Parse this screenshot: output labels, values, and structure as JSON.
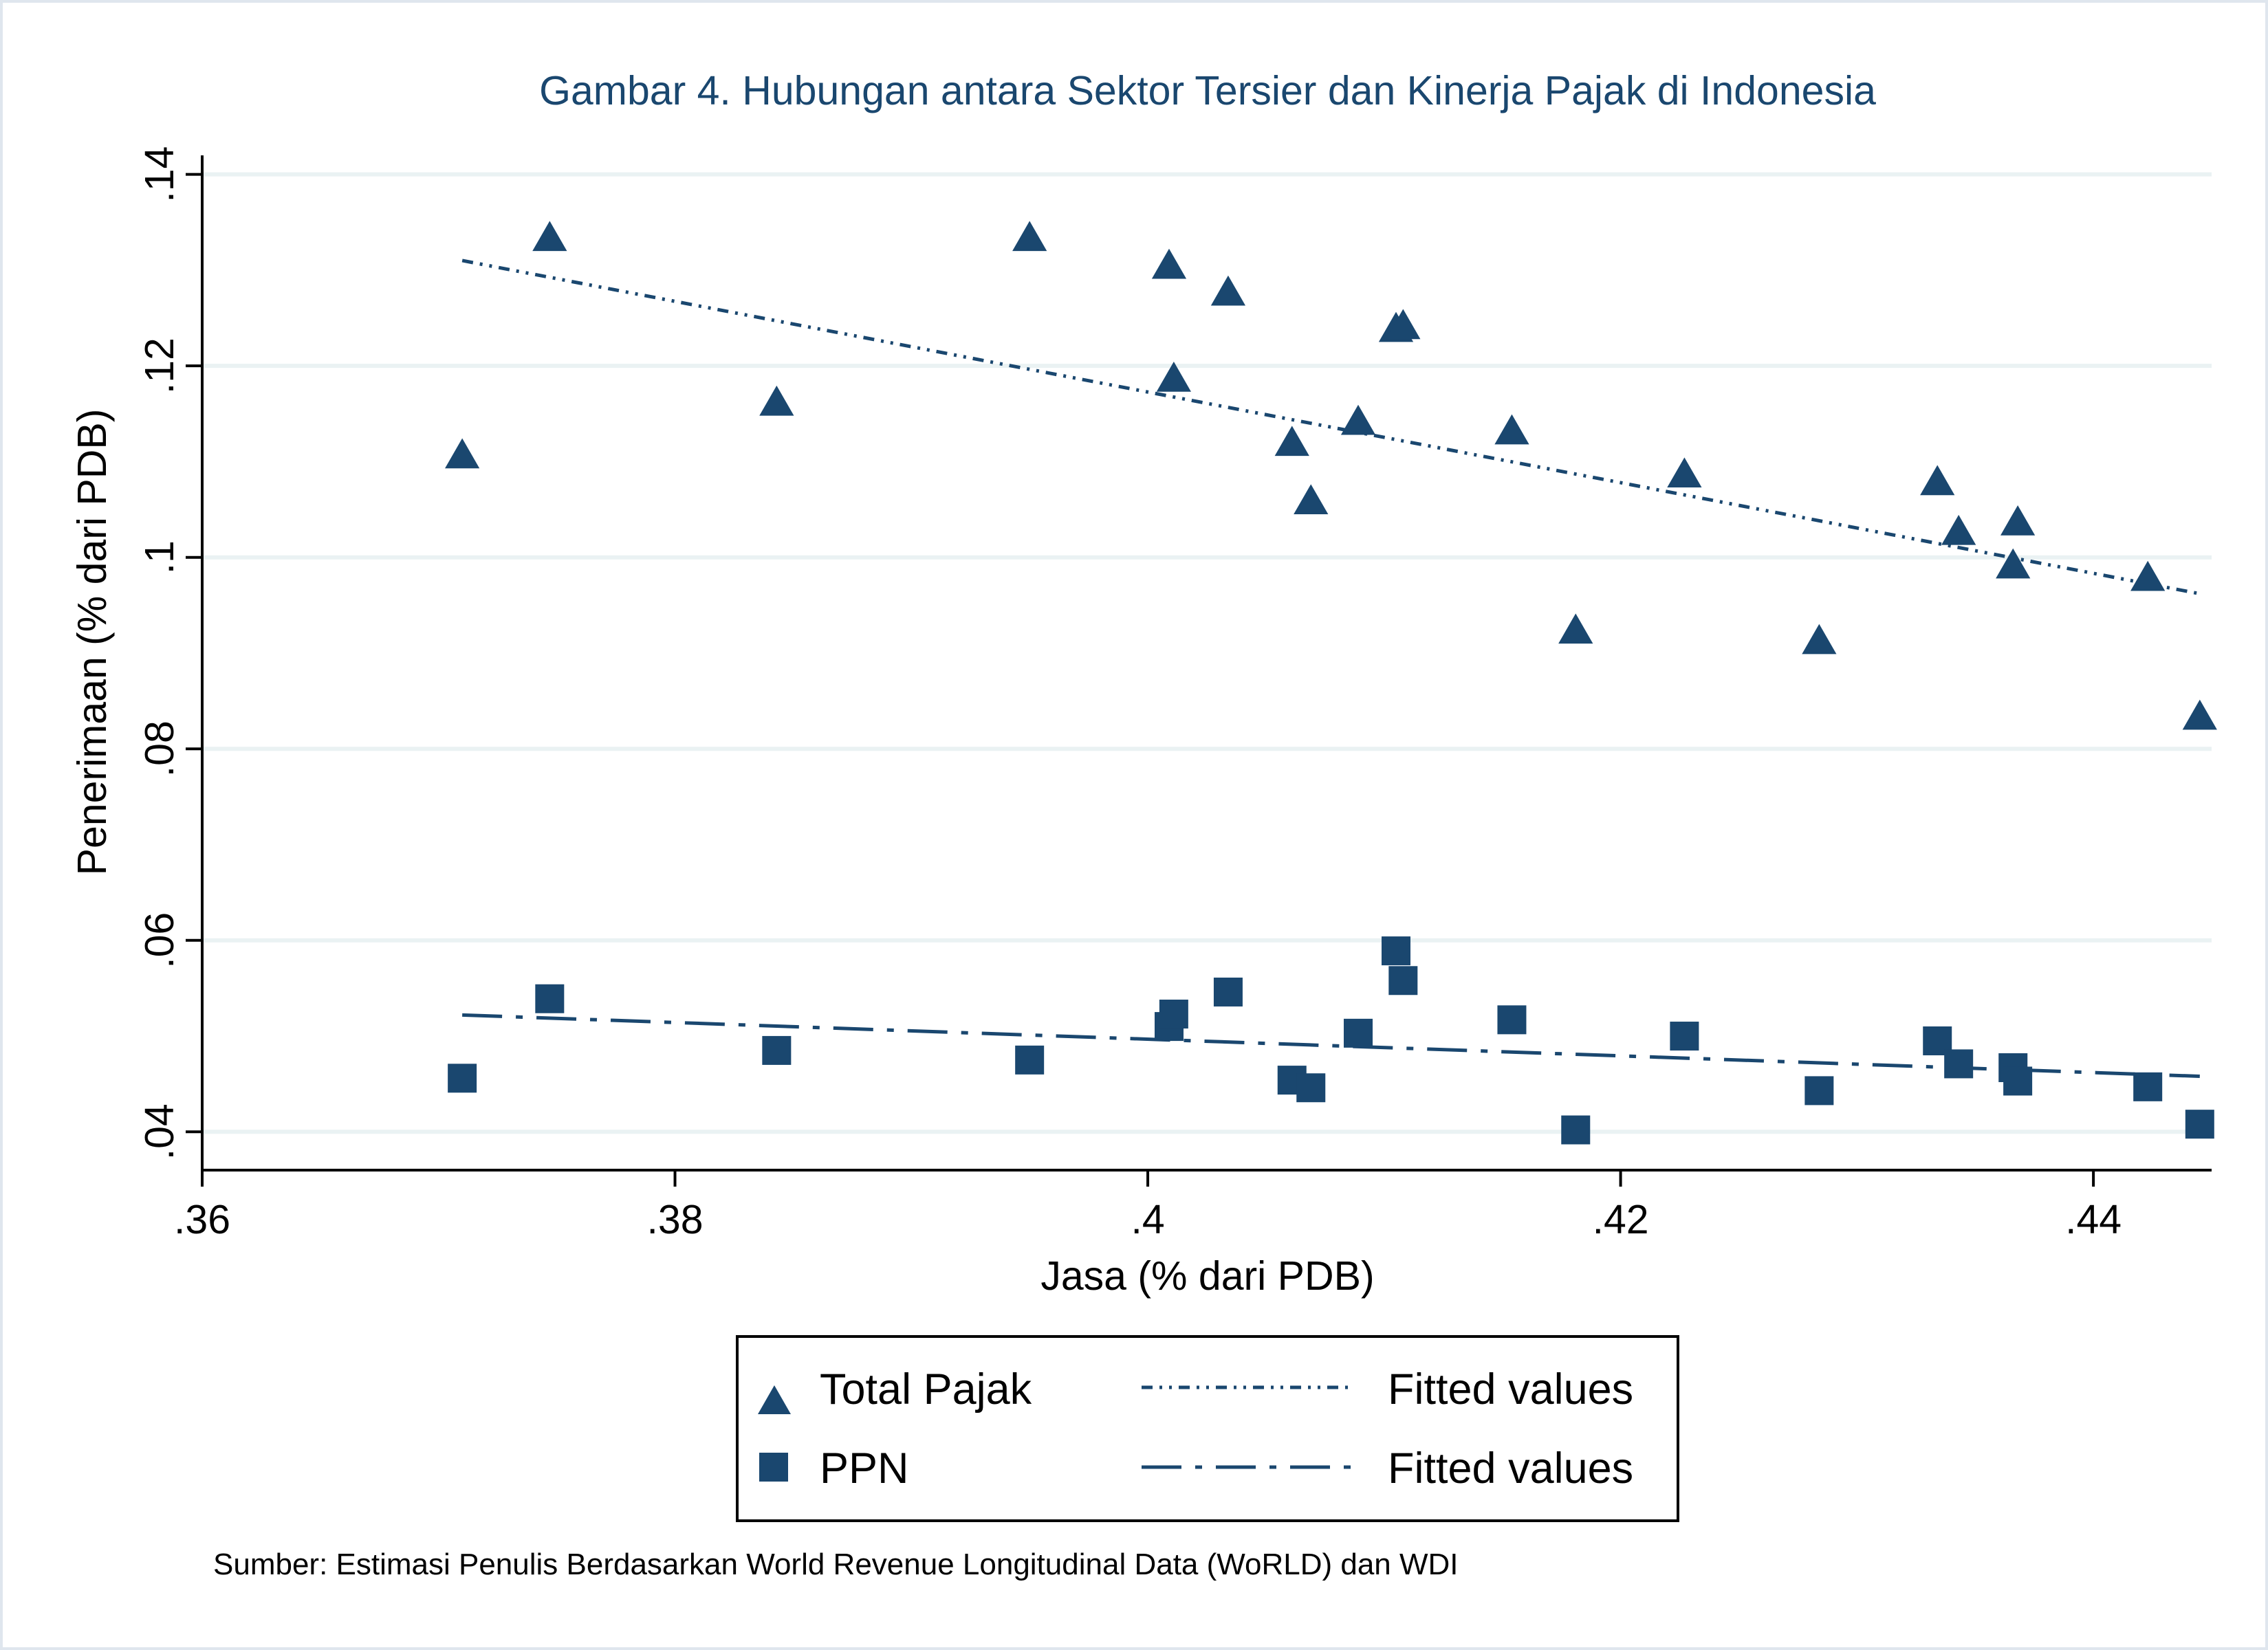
{
  "chart_data": {
    "type": "scatter",
    "title": "Gambar 4. Hubungan antara Sektor Tersier dan Kinerja Pajak di Indonesia",
    "xlabel": "Jasa (% dari PDB)",
    "ylabel": "Penerimaan (% dari PDB)",
    "xlim": [
      0.36,
      0.445
    ],
    "ylim": [
      0.036,
      0.145
    ],
    "xticks": [
      0.36,
      0.38,
      0.4,
      0.42,
      0.44
    ],
    "xtick_labels": [
      ".36",
      ".38",
      ".4",
      ".42",
      ".44"
    ],
    "yticks": [
      0.04,
      0.06,
      0.08,
      0.1,
      0.12,
      0.14
    ],
    "ytick_labels": [
      ".04",
      ".06",
      ".08",
      ".1",
      ".12",
      ".14"
    ],
    "grid": true,
    "legend_position": "bottom",
    "series": [
      {
        "name": "Total Pajak",
        "kind": "points",
        "marker": "triangle",
        "color": "#1a476f",
        "points": [
          {
            "x": 0.371,
            "y": 0.1105
          },
          {
            "x": 0.3747,
            "y": 0.1332
          },
          {
            "x": 0.3843,
            "y": 0.116
          },
          {
            "x": 0.395,
            "y": 0.1332
          },
          {
            "x": 0.4009,
            "y": 0.1303
          },
          {
            "x": 0.4011,
            "y": 0.1185
          },
          {
            "x": 0.4034,
            "y": 0.1275
          },
          {
            "x": 0.4061,
            "y": 0.1118
          },
          {
            "x": 0.4069,
            "y": 0.1057
          },
          {
            "x": 0.4089,
            "y": 0.114
          },
          {
            "x": 0.4105,
            "y": 0.1237
          },
          {
            "x": 0.4108,
            "y": 0.124
          },
          {
            "x": 0.4154,
            "y": 0.113
          },
          {
            "x": 0.4181,
            "y": 0.0922
          },
          {
            "x": 0.4227,
            "y": 0.1085
          },
          {
            "x": 0.4284,
            "y": 0.0911
          },
          {
            "x": 0.4334,
            "y": 0.1077
          },
          {
            "x": 0.4343,
            "y": 0.1025
          },
          {
            "x": 0.4366,
            "y": 0.099
          },
          {
            "x": 0.4368,
            "y": 0.1035
          },
          {
            "x": 0.4423,
            "y": 0.0977
          },
          {
            "x": 0.4445,
            "y": 0.0832
          }
        ]
      },
      {
        "name": "Fitted values",
        "kind": "line",
        "dash": "shortdashdot",
        "color": "#1a476f",
        "points": [
          {
            "x": 0.371,
            "y": 0.131
          },
          {
            "x": 0.4445,
            "y": 0.0962
          }
        ]
      },
      {
        "name": "PPN",
        "kind": "points",
        "marker": "square",
        "color": "#1a476f",
        "points": [
          {
            "x": 0.371,
            "y": 0.0456
          },
          {
            "x": 0.3747,
            "y": 0.0539
          },
          {
            "x": 0.3843,
            "y": 0.0485
          },
          {
            "x": 0.395,
            "y": 0.0475
          },
          {
            "x": 0.4009,
            "y": 0.051
          },
          {
            "x": 0.4011,
            "y": 0.0523
          },
          {
            "x": 0.4034,
            "y": 0.0546
          },
          {
            "x": 0.4061,
            "y": 0.0454
          },
          {
            "x": 0.4069,
            "y": 0.0446
          },
          {
            "x": 0.4089,
            "y": 0.0503
          },
          {
            "x": 0.4105,
            "y": 0.0589
          },
          {
            "x": 0.4108,
            "y": 0.0558
          },
          {
            "x": 0.4154,
            "y": 0.0517
          },
          {
            "x": 0.4181,
            "y": 0.0402
          },
          {
            "x": 0.4227,
            "y": 0.05
          },
          {
            "x": 0.4284,
            "y": 0.0443
          },
          {
            "x": 0.4334,
            "y": 0.0495
          },
          {
            "x": 0.4343,
            "y": 0.0471
          },
          {
            "x": 0.4366,
            "y": 0.0467
          },
          {
            "x": 0.4368,
            "y": 0.0453
          },
          {
            "x": 0.4423,
            "y": 0.0447
          },
          {
            "x": 0.4445,
            "y": 0.0408
          }
        ]
      },
      {
        "name": "Fitted values",
        "kind": "line",
        "dash": "longdash_dot",
        "color": "#1a476f",
        "points": [
          {
            "x": 0.371,
            "y": 0.0522
          },
          {
            "x": 0.4445,
            "y": 0.0458
          }
        ]
      }
    ],
    "note": "Sumber: Estimasi Penulis Berdasarkan World Revenue Longitudinal Data (WoRLD) dan WDI"
  },
  "colors": {
    "marker": "#1a476f",
    "grid": "#eaf2f3",
    "title": "#1a476f"
  }
}
